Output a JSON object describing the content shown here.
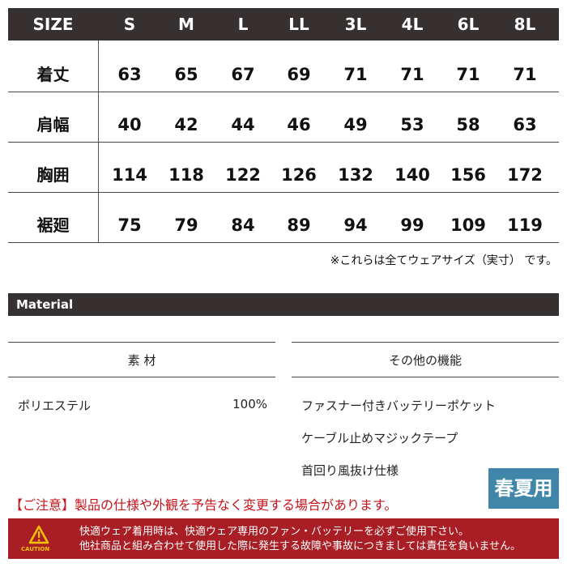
{
  "size_table": {
    "header_label": "SIZE",
    "sizes": [
      "S",
      "M",
      "L",
      "LL",
      "3L",
      "4L",
      "6L",
      "8L"
    ],
    "rows": [
      {
        "label": "着丈",
        "values": [
          "63",
          "65",
          "67",
          "69",
          "71",
          "71",
          "71",
          "71"
        ]
      },
      {
        "label": "肩幅",
        "values": [
          "40",
          "42",
          "44",
          "46",
          "49",
          "53",
          "58",
          "63"
        ]
      },
      {
        "label": "胸囲",
        "values": [
          "114",
          "118",
          "122",
          "126",
          "132",
          "140",
          "156",
          "172"
        ]
      },
      {
        "label": "裾廻",
        "values": [
          "75",
          "79",
          "84",
          "89",
          "94",
          "99",
          "109",
          "119"
        ]
      }
    ],
    "note": "※これらは全てウェアサイズ（実寸） です。"
  },
  "material": {
    "title": "Material",
    "left_header": "素 材",
    "fabric": "ポリエステル",
    "percent": "100%",
    "right_header": "その他の機能",
    "features": [
      "ファスナー付きバッテリーポケット",
      "ケーブル止めマジックテープ",
      "首回り風抜け仕様"
    ]
  },
  "badge": {
    "label": "春夏用",
    "color": "#3f86a8"
  },
  "warning": "【ご注意】製品の仕様や外観を予告なく変更する場合があります。",
  "caution": {
    "icon_label": "CAUTION",
    "lines": [
      "快適ウェア着用時は、快適ウェア専用のファン・バッテリーを必ずご使用下さい。",
      "他社商品と組み合わせて使用した際に発生する故障や事故につきましては責任を負いません。"
    ],
    "color": "#a91e24"
  }
}
